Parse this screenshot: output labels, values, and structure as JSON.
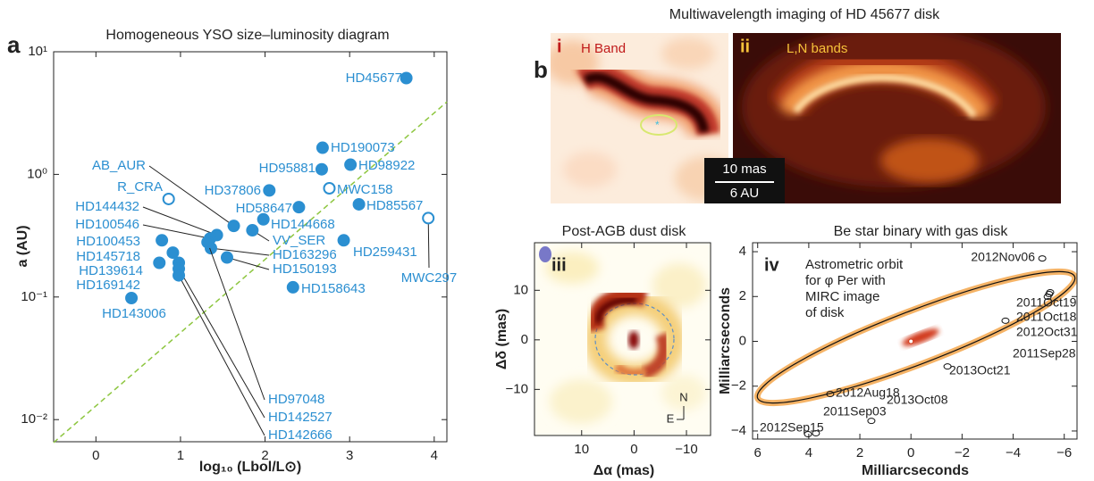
{
  "chart_data": [
    {
      "type": "scatter",
      "panel": "a",
      "title": "Homogeneous YSO size–luminosity diagram",
      "xlabel": "log₁₀ (Lbol/L⊙)",
      "ylabel": "a (AU)",
      "log_y": true,
      "color": "#2b8fd1",
      "xlim": [
        -0.5,
        4.15
      ],
      "ylim": [
        0.0066,
        10
      ],
      "xticks": [
        0,
        1,
        2,
        3,
        4
      ],
      "yticks": [
        {
          "value": 0.01,
          "label": "10⁻²"
        },
        {
          "value": 0.1,
          "label": "10⁻¹"
        },
        {
          "value": 1,
          "label": "10⁰"
        },
        {
          "value": 10,
          "label": "10¹"
        }
      ],
      "points": [
        {
          "name": "HD45677",
          "x": 3.67,
          "y": 6.1
        },
        {
          "name": "HD190073",
          "x": 2.68,
          "y": 1.65
        },
        {
          "name": "HD98922",
          "x": 3.01,
          "y": 1.2
        },
        {
          "name": "HD95881",
          "x": 2.67,
          "y": 1.1
        },
        {
          "name": "MWC158",
          "x": 2.76,
          "y": 0.77,
          "open": true
        },
        {
          "name": "HD85567",
          "x": 3.11,
          "y": 0.57
        },
        {
          "name": "MWC297",
          "x": 3.93,
          "y": 0.44,
          "open": true
        },
        {
          "name": "R_CRA",
          "x": 0.86,
          "y": 0.63,
          "open": true
        },
        {
          "name": "HD37806",
          "x": 2.05,
          "y": 0.74
        },
        {
          "name": "HD58647",
          "x": 2.4,
          "y": 0.54
        },
        {
          "name": "HD144668",
          "x": 1.98,
          "y": 0.43
        },
        {
          "name": "AB_AUR",
          "x": 1.63,
          "y": 0.38
        },
        {
          "name": "VV_SER",
          "x": 1.85,
          "y": 0.35
        },
        {
          "name": "HD259431",
          "x": 2.93,
          "y": 0.29
        },
        {
          "name": "HD158643",
          "x": 2.33,
          "y": 0.12
        },
        {
          "name": "HD144432",
          "x": 1.43,
          "y": 0.32
        },
        {
          "name": "HD100546",
          "x": 1.35,
          "y": 0.3
        },
        {
          "name": "HD163296",
          "x": 1.36,
          "y": 0.25
        },
        {
          "name": "HD150193",
          "x": 1.55,
          "y": 0.21
        },
        {
          "name": "HD100453",
          "x": 0.78,
          "y": 0.29
        },
        {
          "name": "HD145718",
          "x": 0.91,
          "y": 0.23
        },
        {
          "name": "HD139614",
          "x": 0.98,
          "y": 0.19
        },
        {
          "name": "HD169142",
          "x": 0.75,
          "y": 0.19
        },
        {
          "name": "HD143006",
          "x": 0.42,
          "y": 0.098
        },
        {
          "name": "HD97048",
          "x": 1.32,
          "y": 0.28
        },
        {
          "name": "HD142527",
          "x": 0.98,
          "y": 0.17
        },
        {
          "name": "HD142666",
          "x": 0.98,
          "y": 0.15
        }
      ],
      "line": {
        "x": [
          -0.5,
          4.15
        ],
        "y": [
          0.0065,
          3.9
        ],
        "color": "#8dc63f",
        "style": "dashed"
      }
    },
    {
      "type": "image",
      "panel": "b",
      "title": "Multiwavelength imaging of HD 45677 disk",
      "images": [
        {
          "label": "i",
          "band": "H Band"
        },
        {
          "label": "ii",
          "band": "L,N bands"
        }
      ],
      "scalebar": [
        "10 mas",
        "6 AU"
      ]
    },
    {
      "type": "image",
      "label": "iii",
      "title": "Post-AGB dust disk",
      "xlabel": "Δα (mas)",
      "ylabel": "Δδ (mas)",
      "xlim": [
        19,
        -14.6
      ],
      "ylim": [
        -19.3,
        19.6
      ],
      "xticks": [
        10,
        0,
        {
          "value": -10,
          "label": "−10"
        }
      ],
      "yticks": [
        {
          "value": -10,
          "label": "−10"
        },
        0,
        10
      ],
      "compass": [
        "N",
        "E"
      ]
    },
    {
      "type": "orbit",
      "label": "iv",
      "title": "Be star binary with gas disk",
      "xlabel": "Milliarcseconds",
      "ylabel": "Milliarcseconds",
      "xlim": [
        6.2,
        -6.5
      ],
      "ylim": [
        -4.36,
        4.4
      ],
      "xticks": [
        6,
        4,
        2,
        0,
        {
          "value": -2,
          "label": "−2"
        },
        {
          "value": -4,
          "label": "−4"
        },
        {
          "value": -6,
          "label": "−6"
        }
      ],
      "yticks": [
        {
          "value": -4,
          "label": "−4"
        },
        {
          "value": -2,
          "label": "−2"
        },
        0,
        2,
        4
      ],
      "annotation": [
        "Astrometric orbit",
        "for φ Per with",
        "MIRC image",
        "of disk"
      ],
      "epochs": [
        {
          "name": "2012Nov06",
          "x": -5.14,
          "y": 3.7
        },
        {
          "name": "2011Oct19",
          "x": -5.45,
          "y": 2.19
        },
        {
          "name": "2011Oct18",
          "x": -5.41,
          "y": 2.11
        },
        {
          "name": "2012Oct31",
          "x": -5.35,
          "y": 1.99
        },
        {
          "name": "2011Sep28",
          "x": -3.7,
          "y": 0.92
        },
        {
          "name": "2013Oct21",
          "x": -1.43,
          "y": -1.12
        },
        {
          "name": "2012Aug18",
          "x": 3.16,
          "y": -2.35
        },
        {
          "name": "2013Oct08",
          "x": 1.55,
          "y": -3.55
        },
        {
          "name": "2011Sep03",
          "x": 3.72,
          "y": -4.1
        },
        {
          "name": "2012Sep15",
          "x": 4.03,
          "y": -4.14
        }
      ]
    }
  ]
}
